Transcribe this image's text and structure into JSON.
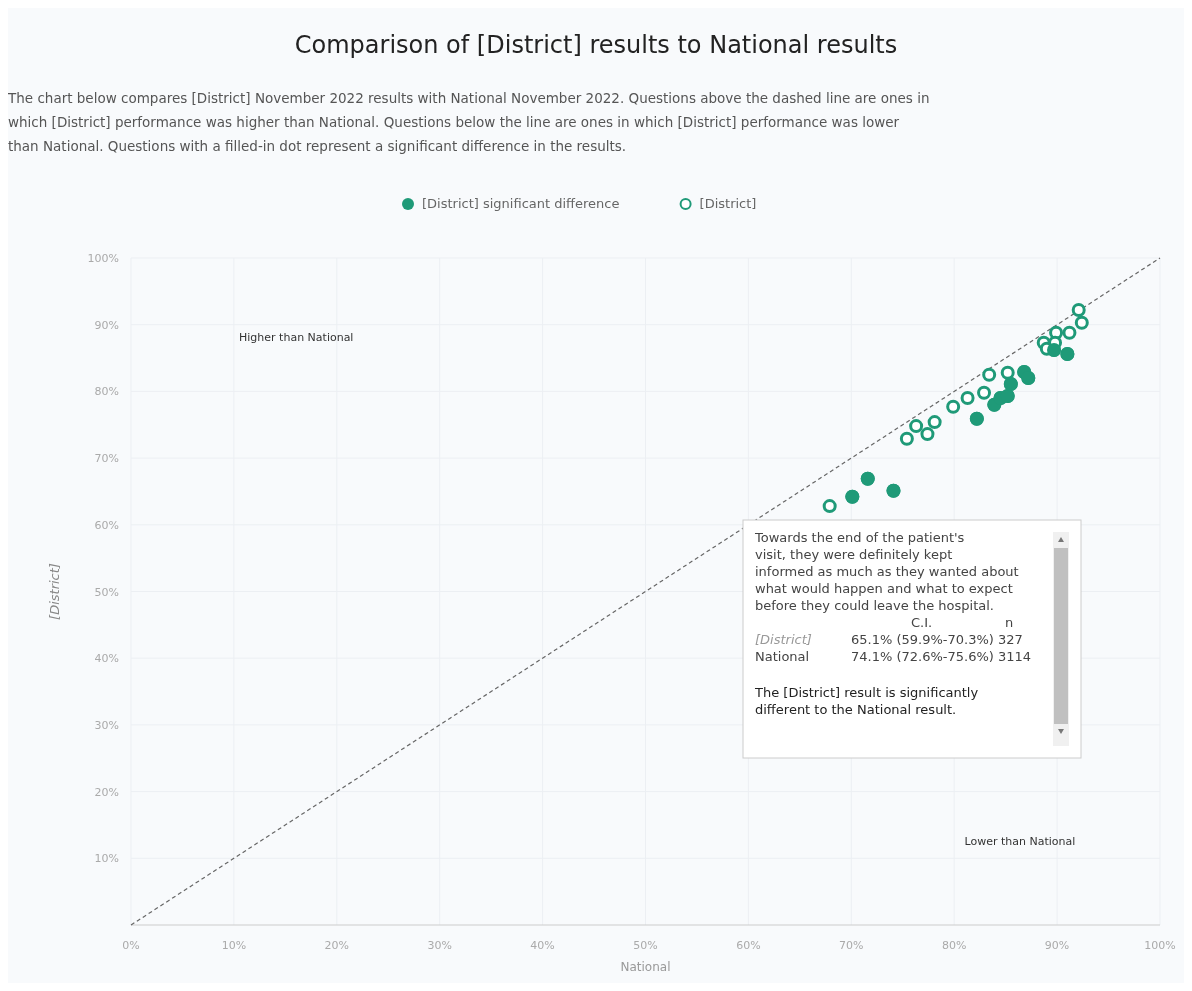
{
  "chart_data": {
    "type": "scatter",
    "title": "Comparison of [District] results to National results",
    "subtitle": "The chart below compares [District] November 2022 results with National November 2022. Questions above the dashed line are ones in which [District] performance was higher than National. Questions below the line are ones in which [District] performance was lower than National. Questions with a filled-in dot represent a significant difference in the results.",
    "xlabel": "National",
    "ylabel": "[District]",
    "xlim": [
      0,
      100
    ],
    "ylim": [
      0,
      100
    ],
    "xticks": [
      {
        "value": 0,
        "label": "0%"
      },
      {
        "value": 10,
        "label": "10%"
      },
      {
        "value": 20,
        "label": "20%"
      },
      {
        "value": 30,
        "label": "30%"
      },
      {
        "value": 40,
        "label": "40%"
      },
      {
        "value": 50,
        "label": "50%"
      },
      {
        "value": 60,
        "label": "60%"
      },
      {
        "value": 70,
        "label": "70%"
      },
      {
        "value": 80,
        "label": "80%"
      },
      {
        "value": 90,
        "label": "90%"
      },
      {
        "value": 100,
        "label": "100%"
      }
    ],
    "yticks": [
      {
        "value": 10,
        "label": "10%"
      },
      {
        "value": 20,
        "label": "20%"
      },
      {
        "value": 30,
        "label": "30%"
      },
      {
        "value": 40,
        "label": "40%"
      },
      {
        "value": 50,
        "label": "50%"
      },
      {
        "value": 60,
        "label": "60%"
      },
      {
        "value": 70,
        "label": "70%"
      },
      {
        "value": 80,
        "label": "80%"
      },
      {
        "value": 90,
        "label": "90%"
      },
      {
        "value": 100,
        "label": "100%"
      }
    ],
    "grid": true,
    "legend": "top",
    "series": [
      {
        "type": "line",
        "color": "#666666",
        "line_style": "dashed",
        "x": [
          0,
          100
        ],
        "values": [
          0,
          100
        ]
      },
      {
        "name": "[District] significant difference",
        "color": "#1f9a78",
        "marker": "circle",
        "x": [
          74.1,
          71.6,
          70.1,
          82.2,
          83.9,
          84.5,
          85.2,
          85.5,
          86.8,
          87.2,
          89.7,
          91.0
        ],
        "values": [
          65.1,
          66.9,
          64.2,
          75.9,
          78.0,
          79.0,
          79.3,
          81.1,
          82.9,
          82.0,
          86.2,
          85.6
        ]
      },
      {
        "name": "[District]",
        "color": "#1f9a78",
        "marker": "circle",
        "x": [
          67.9,
          75.4,
          76.3,
          77.4,
          78.1,
          79.9,
          81.3,
          82.9,
          83.4,
          85.2,
          88.7,
          89.0,
          89.9,
          89.8,
          91.2,
          92.1,
          92.4
        ],
        "values": [
          62.8,
          72.9,
          74.8,
          73.6,
          75.4,
          77.7,
          79.0,
          79.8,
          82.5,
          82.8,
          87.3,
          86.4,
          88.8,
          87.3,
          88.8,
          92.2,
          90.3
        ]
      }
    ],
    "annotations": [
      "Higher than National",
      "Lower than National",
      "Towards the end of the patient's visit, they were definitely kept informed as much as they wanted about what would happen and what to expect before they could leave the hospital.",
      "C.I.",
      "n",
      "[District]",
      "65.1% (59.9%-70.3%) 327",
      "National",
      "74.1% (72.6%-75.6%) 3114",
      "The [District] result is significantly different to the National result."
    ]
  }
}
